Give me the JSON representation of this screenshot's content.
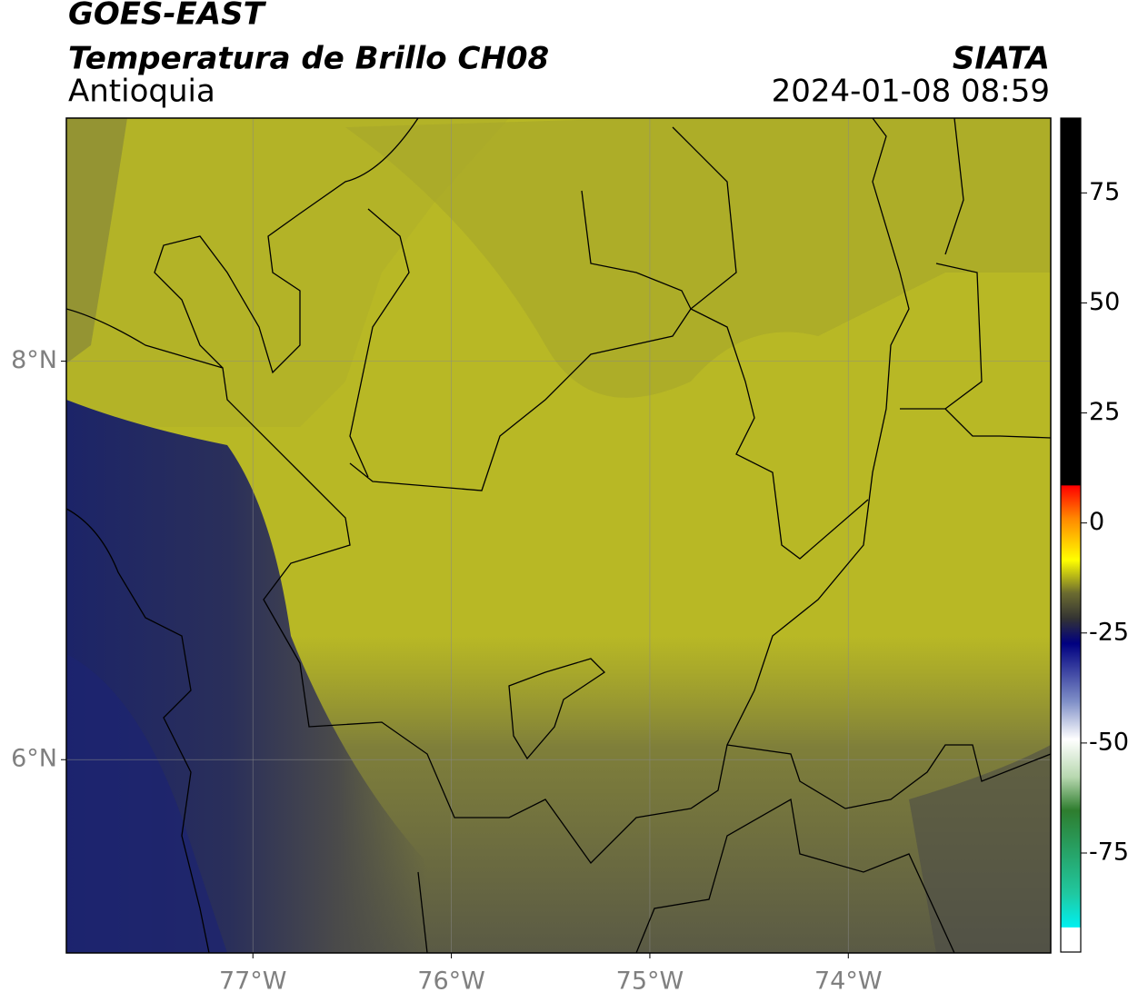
{
  "header": {
    "satellite": "GOES-EAST",
    "product": "Temperatura de Brillo CH08",
    "region": "Antioquia",
    "agency": "SIATA",
    "datetime": "2024-01-08 08:59"
  },
  "map": {
    "xlim": [
      -77.94,
      -72.98
    ],
    "ylim": [
      5.03,
      9.22
    ],
    "xticks": [
      {
        "value": -77,
        "label": "77°W"
      },
      {
        "value": -76,
        "label": "76°W"
      },
      {
        "value": -75,
        "label": "75°W"
      },
      {
        "value": -74,
        "label": "74°W"
      }
    ],
    "yticks": [
      {
        "value": 6,
        "label": "6°N"
      },
      {
        "value": 8,
        "label": "8°N"
      }
    ],
    "grid": true
  },
  "colorbar": {
    "clim": [
      -97.5,
      92
    ],
    "ticks": [
      -75,
      -50,
      -25,
      0,
      25,
      50,
      75
    ]
  }
}
